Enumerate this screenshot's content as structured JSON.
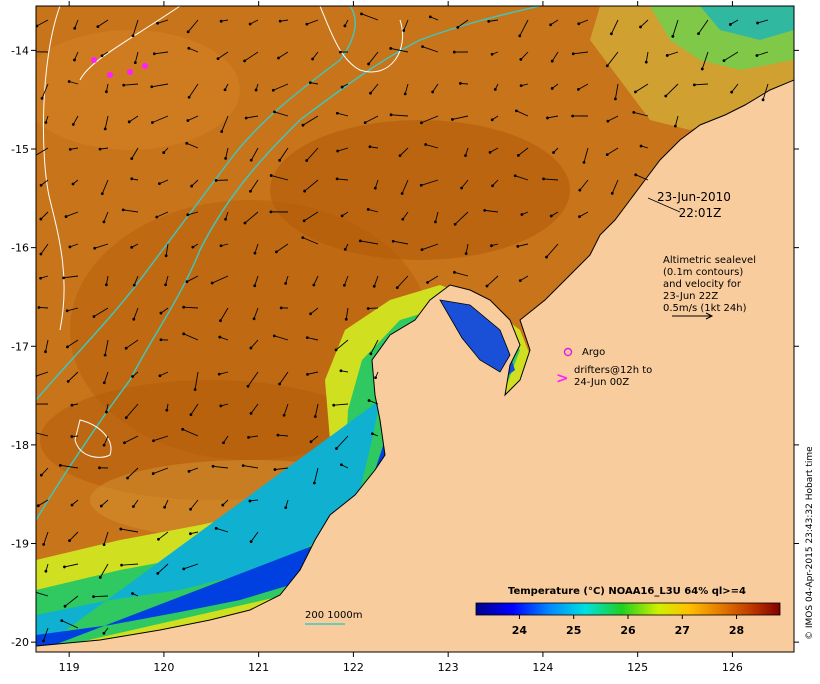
{
  "map": {
    "lon_ticks": [
      "119",
      "120",
      "121",
      "122",
      "123",
      "124",
      "125",
      "126"
    ],
    "lat_ticks": [
      "-14",
      "-15",
      "-16",
      "-17",
      "-18",
      "-19",
      "-20"
    ],
    "lon_range": [
      118.65,
      126.65
    ],
    "lat_range": [
      -20.1,
      -13.55
    ]
  },
  "annotations": {
    "date": "23-Jun-2010",
    "time": "22:01Z",
    "altimetry_lines": [
      "Altimetric sealevel",
      "(0.1m contours)",
      "and velocity for",
      "23-Jun 22Z",
      "0.5m/s (1kt 24h)"
    ],
    "argo_label": "Argo",
    "drifters_lines": [
      "drifters@12h to",
      "24-Jun 00Z"
    ],
    "depth_legend": "200  1000m"
  },
  "colorbar": {
    "title": "Temperature (°C) NOAA16_L3U 64% ql>=4",
    "ticks": [
      "24",
      "25",
      "26",
      "27",
      "28"
    ],
    "range": [
      23.2,
      28.8
    ]
  },
  "credit": "© IMOS 04-Apr-2015 23:43:32 Hobart time",
  "colors": {
    "land": "#f9cc9e",
    "warm_sea": "#c8700f",
    "shelf_contour": "#3cc9c0",
    "sealevel_contour": "#ffffff",
    "argo_marker": "#e020e0",
    "drifter_marker": "#ff20ff"
  }
}
